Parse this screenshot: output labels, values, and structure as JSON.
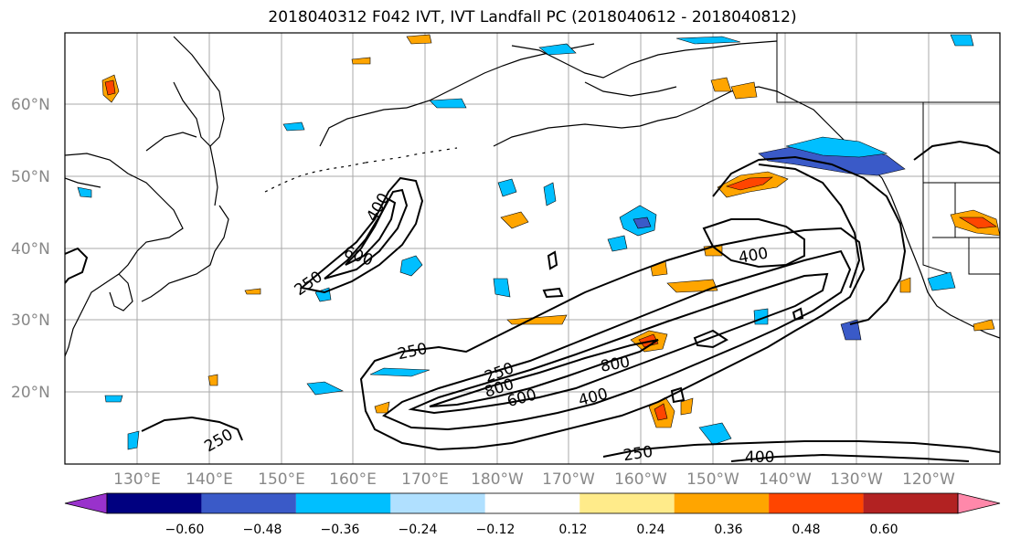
{
  "title": "2018040312 F042 IVT, IVT Landfall PC (2018040612 - 2018040812)",
  "map": {
    "lat_labels": [
      "60°N",
      "50°N",
      "40°N",
      "30°N",
      "20°N"
    ],
    "lon_labels": [
      "130°E",
      "140°E",
      "150°E",
      "160°E",
      "170°E",
      "180°W",
      "170°W",
      "160°W",
      "150°W",
      "140°W",
      "130°W",
      "120°W"
    ],
    "contour_labels": [
      "250",
      "400",
      "600",
      "250",
      "250",
      "800",
      "600",
      "800",
      "400",
      "250",
      "400",
      "400",
      "250"
    ]
  },
  "colorbar": {
    "ticks": [
      "−0.60",
      "−0.48",
      "−0.36",
      "−0.24",
      "−0.12",
      "0.12",
      "0.24",
      "0.36",
      "0.48",
      "0.60"
    ],
    "colors": [
      "#9932cc",
      "#000080",
      "#3a5ac8",
      "#00bfff",
      "#b0e0ff",
      "#ffffff",
      "#ffeb8a",
      "#ffa500",
      "#ff4500",
      "#b22222",
      "#ff88aa"
    ]
  }
}
